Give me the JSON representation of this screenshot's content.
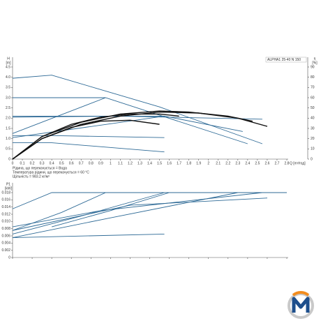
{
  "chart_data": [
    {
      "type": "line",
      "title": "ALPHA1 25-40 N 150",
      "y_label": "H",
      "y_unit": "[m]",
      "y2_label": "η",
      "y2_unit": "[%]",
      "x_label": "Q [m³/год]",
      "notes": [
        "Рідина, що перекачується = Вода",
        "Температура рідини, що перекачується = 60 °C",
        "Щільність = 983.2 кг/м³"
      ],
      "xlim": [
        0,
        2.8
      ],
      "xticks": [
        0,
        0.1,
        0.2,
        0.3,
        0.4,
        0.5,
        0.6,
        0.7,
        0.8,
        0.9,
        1,
        1.1,
        1.2,
        1.3,
        1.4,
        1.5,
        1.6,
        1.7,
        1.8,
        1.9,
        2,
        2.1,
        2.2,
        2.3,
        2.4,
        2.5,
        2.6,
        2.7,
        2.8
      ],
      "ylim": [
        0,
        4.5
      ],
      "yticks": [
        0,
        0.5,
        {
          "value": 1,
          "label": "1.0"
        },
        1.5,
        {
          "value": 2,
          "label": "2.0"
        },
        2.5,
        {
          "value": 3,
          "label": "3.0"
        },
        3.5,
        {
          "value": 4,
          "label": "4.0"
        },
        4.5
      ],
      "y2lim": [
        0,
        90
      ],
      "y2ticks": [
        0,
        10,
        20,
        30,
        40,
        50,
        60,
        70,
        80,
        90
      ],
      "grid": false,
      "series": [
        {
          "color": "#2e6a96",
          "x": [
            0,
            0.4,
            1.5,
            2.55
          ],
          "values": [
            3.95,
            4.1,
            2.55,
            0.75
          ]
        },
        {
          "color": "#2e6a96",
          "x": [
            0,
            0.95,
            2.4
          ],
          "values": [
            3.0,
            3.0,
            0.75
          ]
        },
        {
          "color": "#2e6a96",
          "x": [
            0,
            0.95
          ],
          "values": [
            1.25,
            3.0
          ]
        },
        {
          "color": "#2e6a96",
          "x": [
            0,
            1.55,
            2.35
          ],
          "values": [
            2.1,
            2.1,
            1.35
          ]
        },
        {
          "color": "#2e6a96",
          "x": [
            0,
            1.55
          ],
          "values": [
            1.05,
            2.1
          ]
        },
        {
          "color": "#2e6a96",
          "x": [
            0,
            1.1,
            2.55
          ],
          "values": [
            2.05,
            2.1,
            1.95
          ]
        },
        {
          "color": "#2e6a96",
          "x": [
            0,
            0.4,
            1.55
          ],
          "values": [
            1.15,
            1.15,
            1.05
          ]
        },
        {
          "color": "#2e6a96",
          "x": [
            0,
            0.4,
            1.55
          ],
          "values": [
            0.8,
            0.8,
            0.35
          ]
        },
        {
          "color": "#111111",
          "axis": "y2",
          "x": [
            0,
            0.3,
            0.7,
            1.1,
            1.5,
            1.9,
            2.3,
            2.6
          ],
          "values": [
            0,
            20,
            34,
            42,
            46,
            45,
            40,
            32
          ]
        },
        {
          "color": "#111111",
          "axis": "y2",
          "x": [
            0,
            0.3,
            0.7,
            1.1,
            1.5,
            1.8,
            2.2,
            2.45
          ],
          "values": [
            0,
            22,
            36,
            44,
            47,
            46,
            42,
            37
          ]
        },
        {
          "color": "#111111",
          "axis": "y2",
          "x": [
            0,
            0.3,
            0.6,
            0.9,
            1.2,
            1.5,
            1.7
          ],
          "values": [
            0,
            22,
            34,
            41,
            44,
            44,
            42
          ]
        },
        {
          "color": "#111111",
          "axis": "y2",
          "x": [
            0,
            0.3,
            0.6,
            0.9,
            1.2,
            1.5
          ],
          "values": [
            0,
            20,
            31,
            37,
            38,
            34
          ]
        }
      ]
    },
    {
      "type": "line",
      "y_label": "P1",
      "y_unit": "[kW]",
      "xlim": [
        0,
        2.8
      ],
      "xticks": [
        0,
        0.2,
        0.4,
        0.6,
        0.8,
        1,
        1.2,
        1.4,
        1.6,
        1.8,
        2,
        2.2,
        2.4,
        2.6,
        2.8
      ],
      "ylim": [
        0,
        0.018
      ],
      "yticks": [
        0,
        0.002,
        0.004,
        0.006,
        0.008,
        {
          "value": 0.01,
          "label": "0.010"
        },
        0.012,
        0.014,
        0.016,
        0.018
      ],
      "grid": false,
      "series": [
        {
          "color": "#2e6a96",
          "x": [
            0,
            0.4,
            2.8
          ],
          "values": [
            0.0135,
            0.018,
            0.018
          ]
        },
        {
          "color": "#2e6a96",
          "x": [
            0,
            0.5,
            0.95
          ],
          "values": [
            0.0075,
            0.0125,
            0.018
          ]
        },
        {
          "color": "#2e6a96",
          "x": [
            0,
            0.7,
            1.55
          ],
          "values": [
            0.0065,
            0.0115,
            0.018
          ]
        },
        {
          "color": "#2e6a96",
          "x": [
            0.4,
            1.0,
            1.6
          ],
          "values": [
            0.0085,
            0.013,
            0.018
          ]
        },
        {
          "color": "#2e6a96",
          "x": [
            0,
            0.9,
            2.55
          ],
          "values": [
            0.0085,
            0.013,
            0.018
          ]
        },
        {
          "color": "#2e6a96",
          "x": [
            0,
            1.2,
            2.6
          ],
          "values": [
            0.0075,
            0.0145,
            0.0165
          ]
        },
        {
          "color": "#2e6a96",
          "x": [
            0,
            1.0,
            2.3
          ],
          "values": [
            0.0055,
            0.011,
            0.018
          ]
        },
        {
          "color": "#2e6a96",
          "x": [
            0,
            1.55
          ],
          "values": [
            0.0055,
            0.0065
          ]
        }
      ]
    }
  ]
}
